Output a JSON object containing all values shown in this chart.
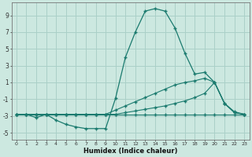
{
  "xlabel": "Humidex (Indice chaleur)",
  "ylabel": "",
  "bg_color": "#cce8e0",
  "grid_color": "#aad0c8",
  "line_color": "#1a7a6e",
  "xlim": [
    -0.5,
    23.5
  ],
  "ylim": [
    -5.8,
    10.5
  ],
  "xticks": [
    0,
    1,
    2,
    3,
    4,
    5,
    6,
    7,
    8,
    9,
    10,
    11,
    12,
    13,
    14,
    15,
    16,
    17,
    18,
    19,
    20,
    21,
    22,
    23
  ],
  "yticks": [
    -5,
    -3,
    -1,
    1,
    3,
    5,
    7,
    9
  ],
  "series_flat_x": [
    0,
    1,
    2,
    3,
    4,
    5,
    6,
    7,
    8,
    9,
    10,
    11,
    12,
    13,
    14,
    15,
    16,
    17,
    18,
    19,
    20,
    21,
    22,
    23
  ],
  "series_flat_y": [
    -2.8,
    -2.8,
    -2.8,
    -2.8,
    -2.8,
    -2.8,
    -2.8,
    -2.8,
    -2.8,
    -2.8,
    -2.8,
    -2.8,
    -2.8,
    -2.8,
    -2.8,
    -2.8,
    -2.8,
    -2.8,
    -2.8,
    -2.8,
    -2.8,
    -2.8,
    -2.8,
    -2.8
  ],
  "series_diag_x": [
    0,
    1,
    2,
    3,
    4,
    5,
    6,
    7,
    8,
    9,
    10,
    11,
    12,
    13,
    14,
    15,
    16,
    17,
    18,
    19,
    20,
    21,
    22,
    23
  ],
  "series_diag_y": [
    -2.8,
    -2.8,
    -2.8,
    -2.8,
    -2.8,
    -2.8,
    -2.8,
    -2.8,
    -2.8,
    -2.8,
    -2.3,
    -1.8,
    -1.3,
    -0.8,
    -0.3,
    0.2,
    0.7,
    1.0,
    1.2,
    1.5,
    1.0,
    -1.5,
    -2.6,
    -2.8
  ],
  "series_main_x": [
    0,
    1,
    2,
    3,
    4,
    5,
    6,
    7,
    8,
    9,
    10,
    11,
    12,
    13,
    14,
    15,
    16,
    17,
    18,
    19,
    20,
    21,
    22,
    23
  ],
  "series_main_y": [
    -2.8,
    -2.8,
    -3.2,
    -2.8,
    -3.5,
    -4.0,
    -4.3,
    -4.5,
    -4.5,
    -4.5,
    -0.9,
    4.0,
    7.0,
    9.5,
    9.8,
    9.5,
    7.5,
    4.5,
    2.0,
    2.2,
    1.0,
    -1.5,
    -2.5,
    -2.8
  ],
  "series_env_x": [
    0,
    1,
    2,
    3,
    4,
    5,
    6,
    7,
    8,
    9,
    10,
    11,
    12,
    13,
    14,
    15,
    16,
    17,
    18,
    19,
    20,
    21,
    22,
    23
  ],
  "series_env_y": [
    -2.8,
    -2.8,
    -2.8,
    -2.8,
    -2.8,
    -2.8,
    -2.8,
    -2.8,
    -2.8,
    -2.8,
    -2.8,
    -2.6,
    -2.4,
    -2.2,
    -2.0,
    -1.8,
    -1.5,
    -1.2,
    -0.8,
    -0.3,
    1.0,
    -1.5,
    -2.6,
    -2.8
  ]
}
